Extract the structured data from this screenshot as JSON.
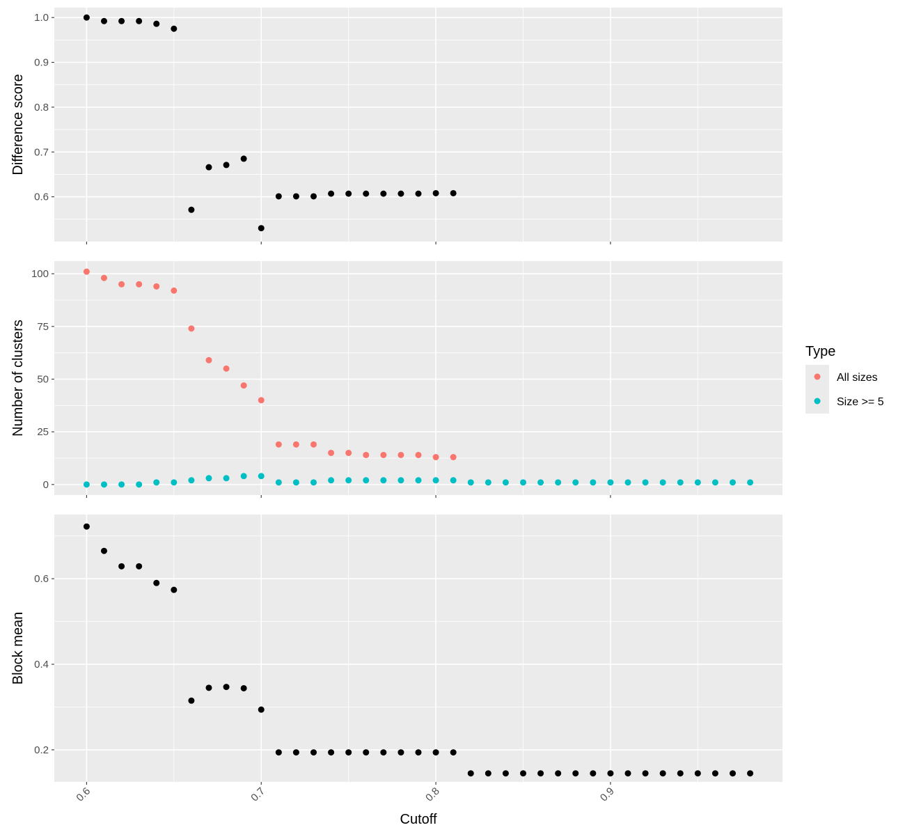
{
  "chart_data": {
    "type": "scatter",
    "x_label": "Cutoff",
    "x_ticks": [
      "0.6",
      "0.7",
      "0.8",
      "0.9"
    ],
    "x_tick_values": [
      0.6,
      0.7,
      0.8,
      0.9
    ],
    "xlim": [
      0.5815,
      0.9985
    ],
    "grid": true,
    "panels": [
      {
        "id": "difference",
        "ylabel": "Difference score",
        "ylim": [
          0.5,
          1.022
        ],
        "y_ticks": [
          "0.6",
          "0.7",
          "0.8",
          "0.9",
          "1.0"
        ],
        "y_tick_values": [
          0.6,
          0.7,
          0.8,
          0.9,
          1.0
        ],
        "series": [
          {
            "color": "#000000",
            "x": [
              0.6,
              0.61,
              0.62,
              0.63,
              0.64,
              0.65,
              0.66,
              0.67,
              0.68,
              0.69,
              0.7,
              0.71,
              0.72,
              0.73,
              0.74,
              0.75,
              0.76,
              0.77,
              0.78,
              0.79,
              0.8,
              0.81
            ],
            "values": [
              1.0,
              0.992,
              0.992,
              0.992,
              0.986,
              0.975,
              0.571,
              0.666,
              0.671,
              0.685,
              0.53,
              0.601,
              0.601,
              0.601,
              0.607,
              0.607,
              0.607,
              0.607,
              0.607,
              0.607,
              0.608,
              0.608
            ]
          }
        ]
      },
      {
        "id": "clusters",
        "ylabel": "Number of clusters",
        "ylim": [
          -5,
          106
        ],
        "y_ticks": [
          "0",
          "25",
          "50",
          "75",
          "100"
        ],
        "y_tick_values": [
          0,
          25,
          50,
          75,
          100
        ],
        "series": [
          {
            "name": "All sizes",
            "color": "#F8766D",
            "x": [
              0.6,
              0.61,
              0.62,
              0.63,
              0.64,
              0.65,
              0.66,
              0.67,
              0.68,
              0.69,
              0.7,
              0.71,
              0.72,
              0.73,
              0.74,
              0.75,
              0.76,
              0.77,
              0.78,
              0.79,
              0.8,
              0.81
            ],
            "values": [
              101,
              98,
              95,
              95,
              94,
              92,
              74,
              59,
              55,
              47,
              40,
              19,
              19,
              19,
              15,
              15,
              14,
              14,
              14,
              14,
              13,
              13
            ]
          },
          {
            "name": "Size >= 5",
            "color": "#00BFC4",
            "x": [
              0.6,
              0.61,
              0.62,
              0.63,
              0.64,
              0.65,
              0.66,
              0.67,
              0.68,
              0.69,
              0.7,
              0.71,
              0.72,
              0.73,
              0.74,
              0.75,
              0.76,
              0.77,
              0.78,
              0.79,
              0.8,
              0.81,
              0.82,
              0.83,
              0.84,
              0.85,
              0.86,
              0.87,
              0.88,
              0.89,
              0.9,
              0.91,
              0.92,
              0.93,
              0.94,
              0.95,
              0.96,
              0.97,
              0.98
            ],
            "values": [
              0,
              0,
              0,
              0,
              1,
              1,
              2,
              3,
              3,
              4,
              4,
              1,
              1,
              1,
              2,
              2,
              2,
              2,
              2,
              2,
              2,
              2,
              1,
              1,
              1,
              1,
              1,
              1,
              1,
              1,
              1,
              1,
              1,
              1,
              1,
              1,
              1,
              1,
              1
            ]
          }
        ]
      },
      {
        "id": "blockmean",
        "ylabel": "Block mean",
        "ylim": [
          0.125,
          0.75
        ],
        "y_ticks": [
          "0.2",
          "0.4",
          "0.6"
        ],
        "y_tick_values": [
          0.2,
          0.4,
          0.6
        ],
        "series": [
          {
            "color": "#000000",
            "x": [
              0.6,
              0.61,
              0.62,
              0.63,
              0.64,
              0.65,
              0.66,
              0.67,
              0.68,
              0.69,
              0.7,
              0.71,
              0.72,
              0.73,
              0.74,
              0.75,
              0.76,
              0.77,
              0.78,
              0.79,
              0.8,
              0.81,
              0.82,
              0.83,
              0.84,
              0.85,
              0.86,
              0.87,
              0.88,
              0.89,
              0.9,
              0.91,
              0.92,
              0.93,
              0.94,
              0.95,
              0.96,
              0.97,
              0.98
            ],
            "values": [
              0.722,
              0.665,
              0.629,
              0.629,
              0.59,
              0.574,
              0.315,
              0.345,
              0.347,
              0.344,
              0.294,
              0.194,
              0.194,
              0.194,
              0.194,
              0.194,
              0.194,
              0.194,
              0.194,
              0.194,
              0.194,
              0.194,
              0.145,
              0.145,
              0.145,
              0.145,
              0.145,
              0.145,
              0.145,
              0.145,
              0.145,
              0.145,
              0.145,
              0.145,
              0.145,
              0.145,
              0.145,
              0.145,
              0.145
            ]
          }
        ]
      }
    ],
    "legend": {
      "title": "Type",
      "position": "right",
      "entries": [
        {
          "label": "All sizes",
          "color": "#F8766D"
        },
        {
          "label": "Size >= 5",
          "color": "#00BFC4"
        }
      ]
    }
  }
}
